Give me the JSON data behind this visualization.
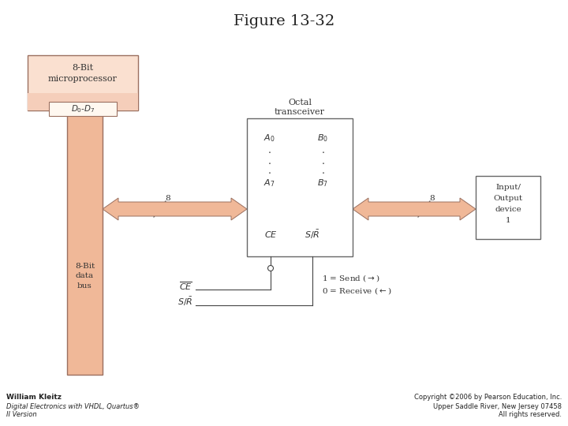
{
  "title": "Figure 13-32",
  "bg_color": "#ffffff",
  "salmon": "#F0B898",
  "salmon_light": "#F5CEBA",
  "salmon_very_light": "#FAE0D0",
  "box_edge": "#9B7060",
  "title_fontsize": 14,
  "bottom_left_text": [
    "William Kleitz",
    "Digital Electronics with VHDL, Quartus®",
    "II Version"
  ],
  "bottom_right_text": [
    "Copyright ©2006 by Pearson Education, Inc.",
    "Upper Saddle River, New Jersey 07458",
    "All rights reserved."
  ]
}
